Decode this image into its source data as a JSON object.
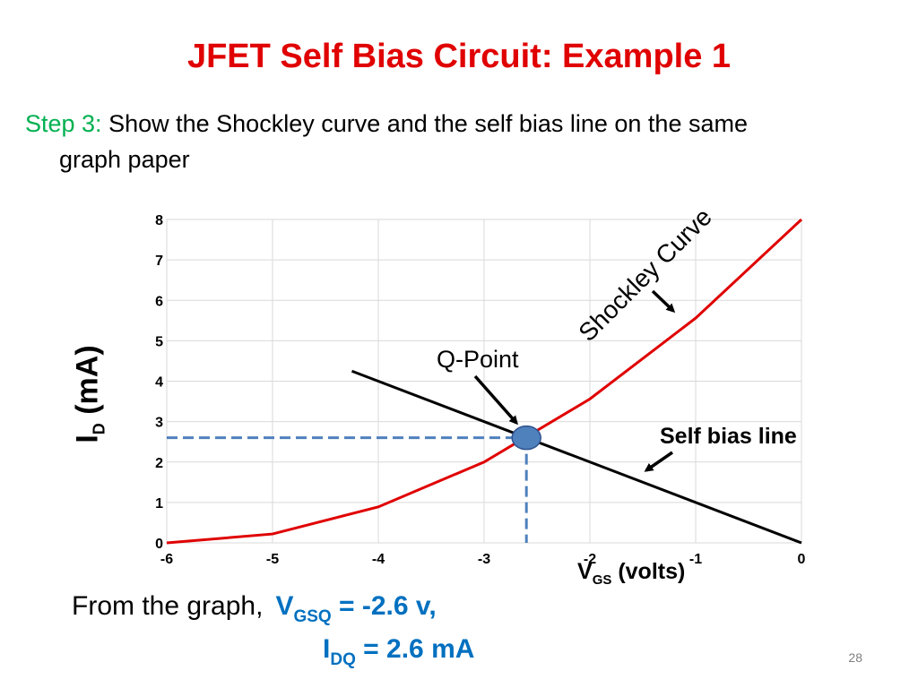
{
  "slide": {
    "title": "JFET Self Bias Circuit: Example 1",
    "step_label": "Step 3:",
    "step_text_1": "Show the Shockley curve and the self  bias line on the same",
    "step_text_2": "graph paper",
    "result_intro": "From the graph,",
    "vgsq_main": "V",
    "vgsq_sub": "GSQ",
    "vgsq_value": " = -2.6 v,",
    "idq_main": "I",
    "idq_sub": "DQ",
    "idq_value": "  = 2.6 mA",
    "page_number": "28"
  },
  "chart_data": {
    "type": "line",
    "xlabel_main": "V",
    "xlabel_sub": "GS",
    "xlabel_rest": "  (volts)",
    "ylabel_main": "I",
    "ylabel_sub": "D",
    "ylabel_rest": " (mA)",
    "xlim": [
      -6,
      0
    ],
    "ylim": [
      0,
      8
    ],
    "x_ticks": [
      -6,
      -5,
      -4,
      -3,
      -2,
      -1,
      0
    ],
    "y_ticks": [
      0,
      1,
      2,
      3,
      4,
      5,
      6,
      7,
      8
    ],
    "grid": true,
    "series": [
      {
        "name": "Shockley Curve",
        "color": "#e00000",
        "x": [
          -6,
          -5,
          -4,
          -3,
          -2,
          -1,
          0
        ],
        "y": [
          0,
          0.22,
          0.89,
          2.0,
          3.56,
          5.56,
          8.0
        ]
      },
      {
        "name": "Self bias line",
        "color": "#000000",
        "x": [
          -4.25,
          0
        ],
        "y": [
          4.25,
          0
        ]
      }
    ],
    "q_point": {
      "label": "Q-Point",
      "x": -2.6,
      "y": 2.6,
      "color": "#4f81bd",
      "dash_color": "#4f81bd"
    }
  }
}
